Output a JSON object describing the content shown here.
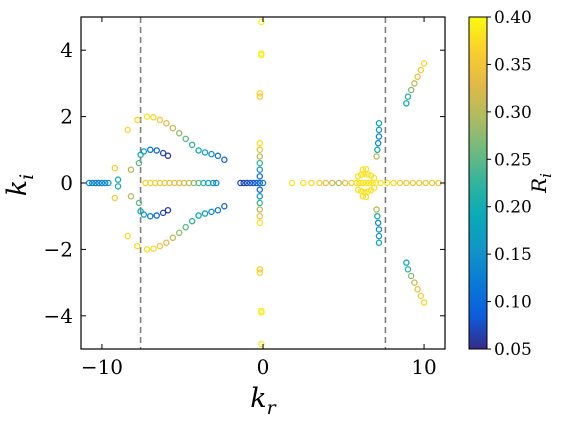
{
  "chart_data": {
    "type": "scatter",
    "xlabel": "k",
    "xlabel_sub": "r",
    "ylabel": "k",
    "ylabel_sub": "i",
    "colorbar_label": "R",
    "colorbar_label_sub": "i",
    "xlim": [
      -11.3,
      11.3
    ],
    "ylim": [
      -5.0,
      5.0
    ],
    "xticks": [
      -10,
      0,
      10
    ],
    "xtick_labels": [
      "−10",
      "0",
      "10"
    ],
    "yticks": [
      -4,
      -2,
      0,
      2,
      4
    ],
    "ytick_labels": [
      "−4",
      "−2",
      "0",
      "2",
      "4"
    ],
    "colorbar": {
      "colormap": "parula",
      "range": [
        0.05,
        0.4
      ],
      "ticks": [
        "0.05",
        "0.10",
        "0.15",
        "0.20",
        "0.25",
        "0.30",
        "0.35",
        "0.40"
      ]
    },
    "marker": "open-circle",
    "reference_lines": [
      {
        "orientation": "vertical",
        "x": -7.6,
        "style": "dashed",
        "color": "#808080"
      },
      {
        "orientation": "vertical",
        "x": 7.6,
        "style": "dashed",
        "color": "#808080"
      }
    ],
    "points": [
      {
        "x": -10.8,
        "y": 0.0,
        "r": 0.13
      },
      {
        "x": -10.6,
        "y": 0.0,
        "r": 0.13
      },
      {
        "x": -10.4,
        "y": 0.0,
        "r": 0.13
      },
      {
        "x": -10.2,
        "y": 0.0,
        "r": 0.13
      },
      {
        "x": -10.0,
        "y": 0.0,
        "r": 0.13
      },
      {
        "x": -9.8,
        "y": 0.0,
        "r": 0.14
      },
      {
        "x": -9.6,
        "y": 0.0,
        "r": 0.15
      },
      {
        "x": -9.0,
        "y": 0.1,
        "r": 0.2
      },
      {
        "x": -9.0,
        "y": -0.1,
        "r": 0.2
      },
      {
        "x": -9.2,
        "y": 0.45,
        "r": 0.36
      },
      {
        "x": -9.2,
        "y": -0.45,
        "r": 0.36
      },
      {
        "x": -8.2,
        "y": 0.4,
        "r": 0.3
      },
      {
        "x": -8.2,
        "y": -0.4,
        "r": 0.3
      },
      {
        "x": -8.4,
        "y": 1.6,
        "r": 0.37
      },
      {
        "x": -8.4,
        "y": -1.6,
        "r": 0.37
      },
      {
        "x": -7.8,
        "y": 1.9,
        "r": 0.37
      },
      {
        "x": -7.8,
        "y": -1.9,
        "r": 0.37
      },
      {
        "x": -7.7,
        "y": 0.6,
        "r": 0.25
      },
      {
        "x": -7.7,
        "y": -0.6,
        "r": 0.25
      },
      {
        "x": -7.6,
        "y": 0.85,
        "r": 0.2
      },
      {
        "x": -7.6,
        "y": -0.85,
        "r": 0.2
      },
      {
        "x": -7.2,
        "y": 2.0,
        "r": 0.38
      },
      {
        "x": -6.8,
        "y": 1.98,
        "r": 0.37
      },
      {
        "x": -6.4,
        "y": 1.9,
        "r": 0.35
      },
      {
        "x": -6.0,
        "y": 1.8,
        "r": 0.33
      },
      {
        "x": -5.6,
        "y": 1.65,
        "r": 0.31
      },
      {
        "x": -5.2,
        "y": 1.5,
        "r": 0.28
      },
      {
        "x": -4.8,
        "y": 1.33,
        "r": 0.25
      },
      {
        "x": -4.4,
        "y": 1.15,
        "r": 0.22
      },
      {
        "x": -4.0,
        "y": 0.98,
        "r": 0.19
      },
      {
        "x": -3.6,
        "y": 0.92,
        "r": 0.17
      },
      {
        "x": -3.2,
        "y": 0.87,
        "r": 0.14
      },
      {
        "x": -2.8,
        "y": 0.82,
        "r": 0.12
      },
      {
        "x": -2.4,
        "y": 0.7,
        "r": 0.09
      },
      {
        "x": -7.2,
        "y": -2.0,
        "r": 0.38
      },
      {
        "x": -6.8,
        "y": -1.98,
        "r": 0.37
      },
      {
        "x": -6.4,
        "y": -1.9,
        "r": 0.35
      },
      {
        "x": -6.0,
        "y": -1.8,
        "r": 0.33
      },
      {
        "x": -5.6,
        "y": -1.65,
        "r": 0.31
      },
      {
        "x": -5.2,
        "y": -1.5,
        "r": 0.28
      },
      {
        "x": -4.8,
        "y": -1.33,
        "r": 0.25
      },
      {
        "x": -4.4,
        "y": -1.15,
        "r": 0.22
      },
      {
        "x": -4.0,
        "y": -0.98,
        "r": 0.19
      },
      {
        "x": -3.6,
        "y": -0.92,
        "r": 0.17
      },
      {
        "x": -3.2,
        "y": -0.87,
        "r": 0.14
      },
      {
        "x": -2.8,
        "y": -0.82,
        "r": 0.12
      },
      {
        "x": -2.4,
        "y": -0.7,
        "r": 0.09
      },
      {
        "x": -7.4,
        "y": 0.95,
        "r": 0.17
      },
      {
        "x": -7.0,
        "y": 1.0,
        "r": 0.12
      },
      {
        "x": -6.6,
        "y": 0.98,
        "r": 0.09
      },
      {
        "x": -6.2,
        "y": 0.9,
        "r": 0.07
      },
      {
        "x": -5.9,
        "y": 0.82,
        "r": 0.06
      },
      {
        "x": -7.4,
        "y": -0.95,
        "r": 0.17
      },
      {
        "x": -7.0,
        "y": -1.0,
        "r": 0.12
      },
      {
        "x": -6.6,
        "y": -0.98,
        "r": 0.09
      },
      {
        "x": -6.2,
        "y": -0.9,
        "r": 0.07
      },
      {
        "x": -5.9,
        "y": -0.82,
        "r": 0.06
      },
      {
        "x": -7.3,
        "y": 0.0,
        "r": 0.36
      },
      {
        "x": -7.0,
        "y": 0.0,
        "r": 0.36
      },
      {
        "x": -6.7,
        "y": 0.0,
        "r": 0.36
      },
      {
        "x": -6.4,
        "y": 0.0,
        "r": 0.35
      },
      {
        "x": -6.1,
        "y": 0.0,
        "r": 0.35
      },
      {
        "x": -5.8,
        "y": 0.0,
        "r": 0.34
      },
      {
        "x": -5.5,
        "y": 0.0,
        "r": 0.34
      },
      {
        "x": -5.2,
        "y": 0.0,
        "r": 0.33
      },
      {
        "x": -4.9,
        "y": 0.0,
        "r": 0.32
      },
      {
        "x": -4.6,
        "y": 0.0,
        "r": 0.31
      },
      {
        "x": -4.3,
        "y": 0.0,
        "r": 0.28
      },
      {
        "x": -4.0,
        "y": 0.0,
        "r": 0.25
      },
      {
        "x": -3.7,
        "y": 0.0,
        "r": 0.22
      },
      {
        "x": -3.4,
        "y": 0.0,
        "r": 0.19
      },
      {
        "x": -3.1,
        "y": 0.0,
        "r": 0.16
      },
      {
        "x": -2.9,
        "y": 0.0,
        "r": 0.14
      },
      {
        "x": -1.4,
        "y": 0.0,
        "r": 0.07
      },
      {
        "x": -1.2,
        "y": 0.0,
        "r": 0.07
      },
      {
        "x": -1.0,
        "y": 0.0,
        "r": 0.07
      },
      {
        "x": -0.8,
        "y": 0.0,
        "r": 0.08
      },
      {
        "x": -0.6,
        "y": 0.0,
        "r": 0.08
      },
      {
        "x": -0.4,
        "y": 0.0,
        "r": 0.09
      },
      {
        "x": -0.2,
        "y": 0.0,
        "r": 0.1
      },
      {
        "x": 0.0,
        "y": 0.0,
        "r": 0.12
      },
      {
        "x": -0.2,
        "y": 1.2,
        "r": 0.38
      },
      {
        "x": -0.2,
        "y": 1.0,
        "r": 0.35
      },
      {
        "x": -0.2,
        "y": 0.8,
        "r": 0.3
      },
      {
        "x": -0.2,
        "y": 0.6,
        "r": 0.23
      },
      {
        "x": -0.2,
        "y": 0.4,
        "r": 0.16
      },
      {
        "x": -0.2,
        "y": 0.2,
        "r": 0.1
      },
      {
        "x": -0.2,
        "y": -0.2,
        "r": 0.1
      },
      {
        "x": -0.2,
        "y": -0.4,
        "r": 0.16
      },
      {
        "x": -0.2,
        "y": -0.6,
        "r": 0.23
      },
      {
        "x": -0.2,
        "y": -0.8,
        "r": 0.3
      },
      {
        "x": -0.2,
        "y": -1.0,
        "r": 0.35
      },
      {
        "x": -0.2,
        "y": -1.2,
        "r": 0.38
      },
      {
        "x": -0.1,
        "y": 4.85,
        "r": 0.39
      },
      {
        "x": -0.1,
        "y": 3.9,
        "r": 0.39
      },
      {
        "x": -0.1,
        "y": 3.85,
        "r": 0.39
      },
      {
        "x": -0.2,
        "y": 2.7,
        "r": 0.37
      },
      {
        "x": -0.2,
        "y": 2.6,
        "r": 0.36
      },
      {
        "x": -0.1,
        "y": -4.85,
        "r": 0.39
      },
      {
        "x": -0.1,
        "y": -3.9,
        "r": 0.39
      },
      {
        "x": -0.1,
        "y": -3.85,
        "r": 0.39
      },
      {
        "x": -0.2,
        "y": -2.7,
        "r": 0.37
      },
      {
        "x": -0.2,
        "y": -2.6,
        "r": 0.36
      },
      {
        "x": 1.8,
        "y": 0.0,
        "r": 0.38
      },
      {
        "x": 2.5,
        "y": 0.0,
        "r": 0.38
      },
      {
        "x": 3.0,
        "y": 0.0,
        "r": 0.37
      },
      {
        "x": 3.5,
        "y": 0.0,
        "r": 0.36
      },
      {
        "x": 3.9,
        "y": 0.0,
        "r": 0.34
      },
      {
        "x": 4.3,
        "y": 0.0,
        "r": 0.31
      },
      {
        "x": 4.7,
        "y": 0.0,
        "r": 0.3
      },
      {
        "x": 5.1,
        "y": 0.0,
        "r": 0.34
      },
      {
        "x": 5.5,
        "y": 0.0,
        "r": 0.36
      },
      {
        "x": 5.8,
        "y": 0.0,
        "r": 0.38
      },
      {
        "x": 6.0,
        "y": 0.0,
        "r": 0.38
      },
      {
        "x": 6.2,
        "y": 0.0,
        "r": 0.38
      },
      {
        "x": 6.4,
        "y": 0.0,
        "r": 0.38
      },
      {
        "x": 6.6,
        "y": 0.0,
        "r": 0.38
      },
      {
        "x": 6.8,
        "y": 0.0,
        "r": 0.38
      },
      {
        "x": 7.0,
        "y": 0.0,
        "r": 0.38
      },
      {
        "x": 5.9,
        "y": 0.2,
        "r": 0.38
      },
      {
        "x": 6.1,
        "y": 0.25,
        "r": 0.38
      },
      {
        "x": 6.3,
        "y": 0.28,
        "r": 0.38
      },
      {
        "x": 6.5,
        "y": 0.26,
        "r": 0.38
      },
      {
        "x": 6.7,
        "y": 0.22,
        "r": 0.38
      },
      {
        "x": 6.9,
        "y": 0.15,
        "r": 0.38
      },
      {
        "x": 5.9,
        "y": -0.2,
        "r": 0.38
      },
      {
        "x": 6.1,
        "y": -0.25,
        "r": 0.38
      },
      {
        "x": 6.3,
        "y": -0.28,
        "r": 0.38
      },
      {
        "x": 6.5,
        "y": -0.26,
        "r": 0.38
      },
      {
        "x": 6.7,
        "y": -0.22,
        "r": 0.38
      },
      {
        "x": 6.9,
        "y": -0.15,
        "r": 0.38
      },
      {
        "x": 6.2,
        "y": 0.4,
        "r": 0.38
      },
      {
        "x": 6.4,
        "y": 0.42,
        "r": 0.38
      },
      {
        "x": 6.2,
        "y": -0.4,
        "r": 0.38
      },
      {
        "x": 6.4,
        "y": -0.42,
        "r": 0.38
      },
      {
        "x": 7.3,
        "y": 0.0,
        "r": 0.38
      },
      {
        "x": 7.7,
        "y": 0.0,
        "r": 0.38
      },
      {
        "x": 8.1,
        "y": 0.0,
        "r": 0.37
      },
      {
        "x": 8.5,
        "y": 0.0,
        "r": 0.36
      },
      {
        "x": 8.9,
        "y": 0.0,
        "r": 0.35
      },
      {
        "x": 9.3,
        "y": 0.0,
        "r": 0.35
      },
      {
        "x": 9.7,
        "y": 0.0,
        "r": 0.35
      },
      {
        "x": 10.1,
        "y": 0.0,
        "r": 0.35
      },
      {
        "x": 10.5,
        "y": 0.0,
        "r": 0.35
      },
      {
        "x": 10.9,
        "y": 0.0,
        "r": 0.35
      },
      {
        "x": 7.2,
        "y": 1.8,
        "r": 0.18
      },
      {
        "x": 7.2,
        "y": 1.6,
        "r": 0.16
      },
      {
        "x": 7.2,
        "y": 1.4,
        "r": 0.14
      },
      {
        "x": 7.15,
        "y": 1.2,
        "r": 0.14
      },
      {
        "x": 7.1,
        "y": 1.0,
        "r": 0.2
      },
      {
        "x": 7.05,
        "y": 0.8,
        "r": 0.3
      },
      {
        "x": 7.2,
        "y": -1.8,
        "r": 0.18
      },
      {
        "x": 7.2,
        "y": -1.6,
        "r": 0.16
      },
      {
        "x": 7.2,
        "y": -1.4,
        "r": 0.14
      },
      {
        "x": 7.15,
        "y": -1.2,
        "r": 0.14
      },
      {
        "x": 7.1,
        "y": -1.0,
        "r": 0.2
      },
      {
        "x": 7.05,
        "y": -0.8,
        "r": 0.3
      },
      {
        "x": 8.9,
        "y": 2.4,
        "r": 0.19
      },
      {
        "x": 9.0,
        "y": 2.6,
        "r": 0.22
      },
      {
        "x": 9.2,
        "y": 2.8,
        "r": 0.27
      },
      {
        "x": 9.4,
        "y": 3.0,
        "r": 0.31
      },
      {
        "x": 9.6,
        "y": 3.2,
        "r": 0.34
      },
      {
        "x": 9.8,
        "y": 3.4,
        "r": 0.36
      },
      {
        "x": 10.0,
        "y": 3.6,
        "r": 0.37
      },
      {
        "x": 8.9,
        "y": -2.4,
        "r": 0.19
      },
      {
        "x": 9.0,
        "y": -2.6,
        "r": 0.22
      },
      {
        "x": 9.2,
        "y": -2.8,
        "r": 0.27
      },
      {
        "x": 9.4,
        "y": -3.0,
        "r": 0.31
      },
      {
        "x": 9.6,
        "y": -3.2,
        "r": 0.34
      },
      {
        "x": 9.8,
        "y": -3.4,
        "r": 0.36
      },
      {
        "x": 10.0,
        "y": -3.6,
        "r": 0.37
      }
    ]
  }
}
